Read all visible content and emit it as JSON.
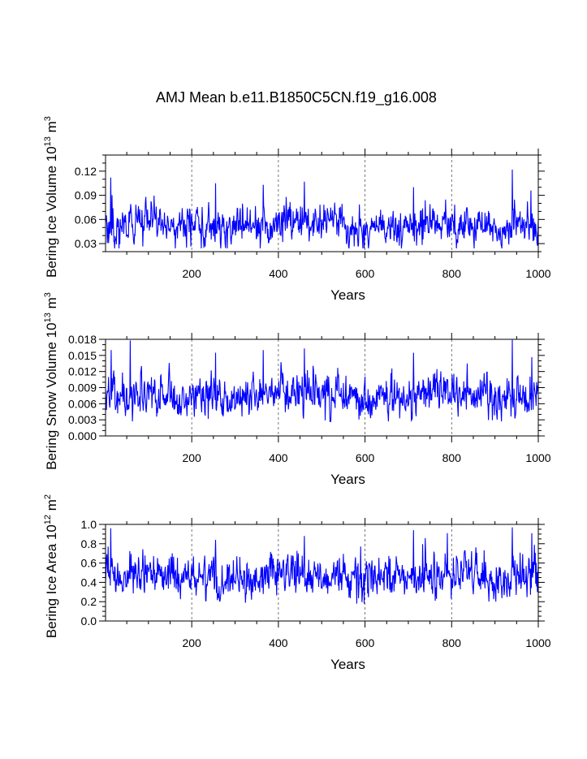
{
  "title": "AMJ Mean b.e11.B1850C5CN.f19_g16.008",
  "chart_data": [
    {
      "type": "line",
      "ylabel": "Bering Ice Volume 10",
      "ylabel_exp": "13",
      "ylabel_unit": " m",
      "ylabel_unit_exp": "3",
      "xlabel": "Years",
      "xlim": [
        1,
        1000
      ],
      "ylim": [
        0.02,
        0.14
      ],
      "xticks": [
        200,
        400,
        600,
        800,
        1000
      ],
      "yticks": [
        0.03,
        0.06,
        0.09,
        0.12
      ],
      "ytick_labels": [
        "0.03",
        "0.06",
        "0.09",
        "0.12"
      ],
      "yminor_step": 0.01,
      "series_color": "#0000ff",
      "mean": 0.052,
      "amp": 0.011,
      "min": 0.024,
      "peaks": [
        [
          13,
          0.112
        ],
        [
          255,
          0.105
        ],
        [
          365,
          0.103
        ],
        [
          460,
          0.107
        ],
        [
          598,
          0.024
        ],
        [
          712,
          0.1
        ],
        [
          940,
          0.122
        ],
        [
          983,
          0.096
        ]
      ]
    },
    {
      "type": "line",
      "ylabel": "Bering Snow Volume 10",
      "ylabel_exp": "13",
      "ylabel_unit": " m",
      "ylabel_unit_exp": "3",
      "xlabel": "Years",
      "xlim": [
        1,
        1000
      ],
      "ylim": [
        0.0,
        0.018
      ],
      "xticks": [
        200,
        400,
        600,
        800,
        1000
      ],
      "yticks": [
        0.0,
        0.003,
        0.006,
        0.009,
        0.012,
        0.015,
        0.018
      ],
      "ytick_labels": [
        "0.000",
        "0.003",
        "0.006",
        "0.009",
        "0.012",
        "0.015",
        "0.018"
      ],
      "yminor_step": 0.001,
      "series_color": "#0000ff",
      "mean": 0.0075,
      "amp": 0.0018,
      "min": 0.0027,
      "peaks": [
        [
          14,
          0.016
        ],
        [
          58,
          0.0178
        ],
        [
          255,
          0.0155
        ],
        [
          365,
          0.016
        ],
        [
          460,
          0.0163
        ],
        [
          712,
          0.0155
        ],
        [
          940,
          0.0179
        ],
        [
          985,
          0.0147
        ]
      ]
    },
    {
      "type": "line",
      "ylabel": "Bering Ice Area 10",
      "ylabel_exp": "12",
      "ylabel_unit": " m",
      "ylabel_unit_exp": "2",
      "xlabel": "Years",
      "xlim": [
        1,
        1000
      ],
      "ylim": [
        0.0,
        1.0
      ],
      "xticks": [
        200,
        400,
        600,
        800,
        1000
      ],
      "yticks": [
        0.0,
        0.2,
        0.4,
        0.6,
        0.8,
        1.0
      ],
      "ytick_labels": [
        "0.0",
        "0.2",
        "0.4",
        "0.6",
        "0.8",
        "1.0"
      ],
      "yminor_step": 0.05,
      "series_color": "#0000ff",
      "mean": 0.46,
      "amp": 0.1,
      "min": 0.18,
      "peaks": [
        [
          13,
          0.96
        ],
        [
          255,
          0.84
        ],
        [
          460,
          0.88
        ],
        [
          598,
          0.18
        ],
        [
          712,
          0.94
        ],
        [
          790,
          0.91
        ],
        [
          940,
          0.97
        ],
        [
          985,
          0.91
        ]
      ]
    }
  ]
}
